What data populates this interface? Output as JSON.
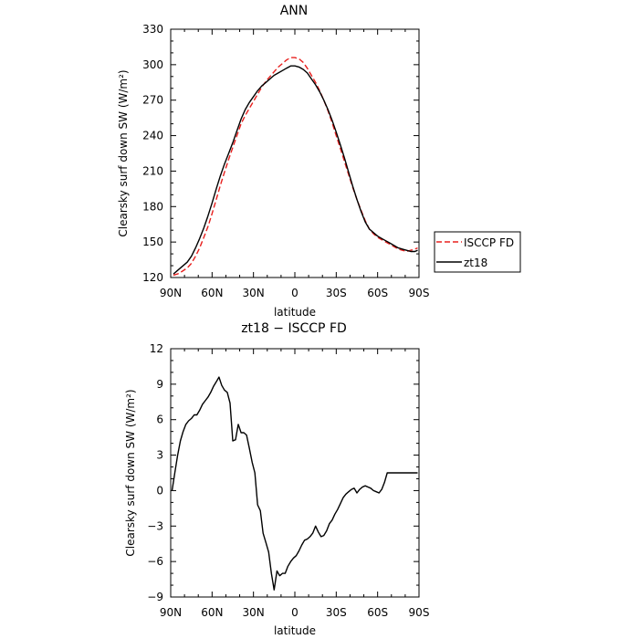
{
  "chart_data": [
    {
      "type": "line",
      "title": "ANN",
      "xlabel": "latitude",
      "ylabel": "Clearsky surf down SW (W/m²)",
      "xlim": [
        90,
        -90
      ],
      "ylim": [
        120,
        330
      ],
      "yticks": [
        120,
        150,
        180,
        210,
        240,
        270,
        300,
        330
      ],
      "xticks": [
        90,
        60,
        30,
        0,
        -30,
        -60,
        -90
      ],
      "xtick_labels": [
        "90N",
        "60N",
        "30N",
        "0",
        "30S",
        "60S",
        "90S"
      ],
      "legend_position": "outside-right",
      "x": [
        88,
        85,
        82,
        78,
        75,
        72,
        69,
        66,
        63,
        60,
        57,
        54,
        51,
        48,
        45,
        42,
        39,
        36,
        33,
        30,
        27,
        24,
        21,
        18,
        15,
        12,
        9,
        6,
        3,
        0,
        -3,
        -6,
        -9,
        -12,
        -15,
        -18,
        -21,
        -24,
        -27,
        -30,
        -33,
        -36,
        -39,
        -42,
        -45,
        -48,
        -51,
        -54,
        -57,
        -60,
        -63,
        -66,
        -69,
        -72,
        -75,
        -78,
        -81,
        -84,
        -87,
        -89
      ],
      "series": [
        {
          "name": "ISCCP FD",
          "color": "#e8201e",
          "dash": "dashed",
          "values": [
            122,
            123,
            125,
            128,
            132,
            138,
            145,
            154,
            163,
            174,
            186,
            198,
            209,
            220,
            230,
            240,
            250,
            257,
            263,
            269,
            275,
            281,
            286,
            290,
            294,
            298,
            301,
            304,
            306,
            306,
            305,
            302,
            297,
            291,
            285,
            278,
            270,
            261,
            251,
            240,
            229,
            218,
            207,
            196,
            186,
            177,
            168,
            161,
            157,
            154,
            152,
            150,
            148,
            146,
            144,
            143,
            142,
            143,
            144,
            145
          ]
        },
        {
          "name": "zt18",
          "color": "#000000",
          "dash": "solid",
          "values": [
            123,
            126,
            129,
            133,
            138,
            145,
            153,
            162,
            172,
            183,
            195,
            206,
            216,
            225,
            234,
            244,
            254,
            262,
            268,
            273,
            278,
            282,
            285,
            288,
            291,
            293,
            295,
            297,
            299,
            299,
            298,
            296,
            293,
            288,
            283,
            277,
            270,
            262,
            253,
            243,
            232,
            221,
            209,
            197,
            186,
            176,
            167,
            161,
            158,
            155,
            153,
            151,
            149,
            147,
            145,
            144,
            143,
            142,
            142,
            143
          ]
        }
      ]
    },
    {
      "type": "line",
      "title": "zt18 − ISCCP FD",
      "xlabel": "latitude",
      "ylabel": "Clearsky surf down SW (W/m²)",
      "xlim": [
        90,
        -90
      ],
      "ylim": [
        -9,
        12
      ],
      "yticks": [
        -9,
        -6,
        -3,
        0,
        3,
        6,
        9,
        12
      ],
      "ytick_labels": [
        "−9",
        "−6",
        "−3",
        "0",
        "3",
        "6",
        "9",
        "12"
      ],
      "xticks": [
        90,
        60,
        30,
        0,
        -30,
        -60,
        -90
      ],
      "xtick_labels": [
        "90N",
        "60N",
        "30N",
        "0",
        "30S",
        "60S",
        "90S"
      ],
      "x": [
        89,
        87,
        85,
        83,
        81,
        79,
        77,
        75,
        73,
        71,
        69,
        67,
        65,
        63,
        61,
        59,
        57,
        55,
        53,
        51,
        49,
        47,
        45,
        43,
        41,
        39,
        37,
        35,
        33,
        31,
        29,
        27,
        25,
        23,
        21,
        19,
        17,
        15,
        13,
        11,
        9,
        7,
        5,
        3,
        1,
        -1,
        -3,
        -5,
        -7,
        -9,
        -11,
        -13,
        -15,
        -17,
        -19,
        -21,
        -23,
        -25,
        -27,
        -29,
        -31,
        -33,
        -35,
        -37,
        -39,
        -41,
        -43,
        -45,
        -47,
        -49,
        -51,
        -53,
        -55,
        -57,
        -59,
        -61,
        -63,
        -65,
        -67,
        -69,
        -71,
        -73,
        -75,
        -77,
        -79,
        -81,
        -83,
        -85,
        -87,
        -89
      ],
      "series": [
        {
          "name": "zt18 − ISCCP FD",
          "color": "#000000",
          "dash": "solid",
          "values": [
            0.0,
            1.5,
            3.0,
            4.2,
            5.0,
            5.6,
            5.9,
            6.1,
            6.4,
            6.4,
            6.8,
            7.3,
            7.6,
            7.9,
            8.3,
            8.8,
            9.2,
            9.6,
            8.9,
            8.5,
            8.3,
            7.4,
            4.2,
            4.3,
            5.6,
            4.9,
            4.9,
            4.7,
            3.6,
            2.4,
            1.5,
            -1.2,
            -1.7,
            -3.6,
            -4.4,
            -5.2,
            -7.0,
            -8.4,
            -6.8,
            -7.2,
            -7.0,
            -7.0,
            -6.4,
            -6.0,
            -5.7,
            -5.5,
            -5.1,
            -4.6,
            -4.2,
            -4.1,
            -3.9,
            -3.6,
            -3.0,
            -3.5,
            -3.9,
            -3.8,
            -3.4,
            -2.8,
            -2.5,
            -2.0,
            -1.6,
            -1.1,
            -0.6,
            -0.3,
            -0.1,
            0.1,
            0.2,
            -0.2,
            0.1,
            0.3,
            0.4,
            0.3,
            0.2,
            0.0,
            -0.1,
            -0.2,
            0.1,
            0.7,
            1.5,
            1.5,
            1.5,
            1.5,
            1.5,
            1.5,
            1.5,
            1.5,
            1.5,
            1.5,
            1.5,
            1.5
          ]
        }
      ]
    }
  ]
}
